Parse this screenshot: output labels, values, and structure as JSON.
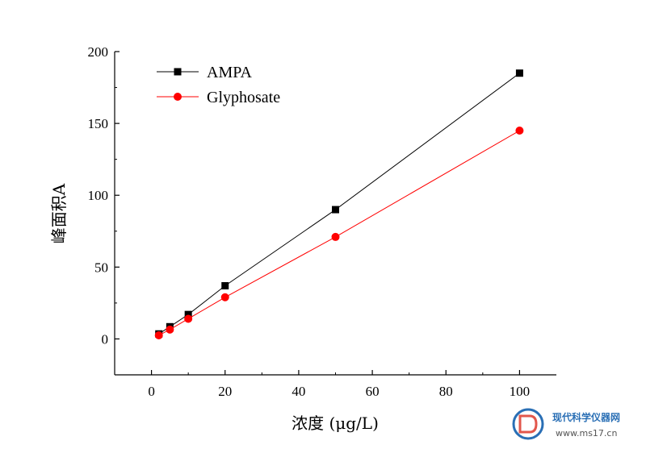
{
  "chart_data": {
    "type": "line",
    "xlabel": "浓度 (μg/L)",
    "ylabel": "峰面积A",
    "xlim": [
      -10,
      110
    ],
    "ylim": [
      -25,
      200
    ],
    "xticks": [
      0,
      20,
      40,
      60,
      80,
      100
    ],
    "yticks": [
      0,
      50,
      100,
      150,
      200
    ],
    "grid": false,
    "legend_position": "top-left",
    "series": [
      {
        "name": "AMPA",
        "color": "#000000",
        "marker": "square",
        "x": [
          2,
          5,
          10,
          20,
          50,
          100
        ],
        "y": [
          3.5,
          8.5,
          17,
          37,
          90,
          185
        ]
      },
      {
        "name": "Glyphosate",
        "color": "#ff0000",
        "marker": "circle",
        "x": [
          2,
          5,
          10,
          20,
          50,
          100
        ],
        "y": [
          2.5,
          6.5,
          14,
          29,
          71,
          145
        ]
      }
    ]
  },
  "watermark": {
    "name": "现代科学仪器网",
    "url": "www.ms17.cn",
    "color": "#2a6fb5"
  }
}
